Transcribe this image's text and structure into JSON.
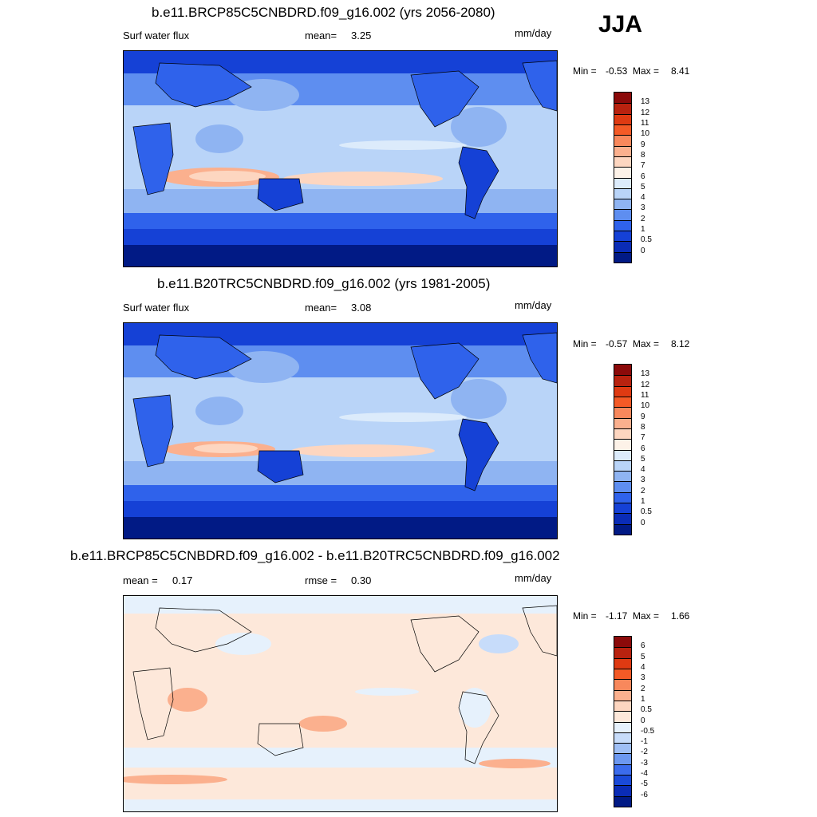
{
  "season": "JJA",
  "panels": [
    {
      "title": "b.e11.BRCP85C5CNBDRD.f09_g16.002 (yrs 2056-2080)",
      "left_label": "Surf water flux",
      "mid_label": "mean=",
      "mid_value": "3.25",
      "units": "mm/day",
      "min_label": "Min =",
      "min_value": "-0.53",
      "max_label": "Max =",
      "max_value": "8.41",
      "colorbar_labels": [
        "13",
        "12",
        "11",
        "10",
        "9",
        "8",
        "7",
        "6",
        "5",
        "4",
        "3",
        "2",
        "1",
        "0.5",
        "0"
      ]
    },
    {
      "title": "b.e11.B20TRC5CNBDRD.f09_g16.002 (yrs 1981-2005)",
      "left_label": "Surf water flux",
      "mid_label": "mean=",
      "mid_value": "3.08",
      "units": "mm/day",
      "min_label": "Min =",
      "min_value": "-0.57",
      "max_label": "Max =",
      "max_value": "8.12",
      "colorbar_labels": [
        "13",
        "12",
        "11",
        "10",
        "9",
        "8",
        "7",
        "6",
        "5",
        "4",
        "3",
        "2",
        "1",
        "0.5",
        "0"
      ]
    },
    {
      "title": "b.e11.BRCP85C5CNBDRD.f09_g16.002 - b.e11.B20TRC5CNBDRD.f09_g16.002",
      "left_label": "mean =",
      "left_value": "0.17",
      "mid_label": "rmse =",
      "mid_value": "0.30",
      "units": "mm/day",
      "min_label": "Min =",
      "min_value": "-1.17",
      "max_label": "Max =",
      "max_value": "1.66",
      "colorbar_labels": [
        "6",
        "5",
        "4",
        "3",
        "2",
        "1",
        "0.5",
        "0",
        "-0.5",
        "-1",
        "-2",
        "-3",
        "-4",
        "-5",
        "-6"
      ]
    }
  ],
  "colors": {
    "abs_scale": [
      "#8b0a0a",
      "#b8220f",
      "#df3a12",
      "#f45a26",
      "#f8885c",
      "#fbb08e",
      "#fdd6c0",
      "#fdf2e8",
      "#dcebfb",
      "#b9d4f8",
      "#8fb4f2",
      "#5e8ef0",
      "#2f62eb",
      "#1541d6",
      "#0a2cb6",
      "#011a85"
    ],
    "diff_scale": [
      "#8b0a0a",
      "#b8220f",
      "#df3a12",
      "#f45a26",
      "#f8885c",
      "#fbb08e",
      "#fdd6c0",
      "#fde8da",
      "#e6f1fc",
      "#c7dcfa",
      "#9fbff5",
      "#6c98f0",
      "#3b6ced",
      "#1a4ad9",
      "#0a2cb6",
      "#011a85"
    ]
  },
  "chart_data": [
    {
      "type": "heatmap",
      "title": "b.e11.BRCP85C5CNBDRD.f09_g16.002 (yrs 2056-2080)",
      "variable": "Surf water flux",
      "units": "mm/day",
      "mean": 3.25,
      "min": -0.53,
      "max": 8.41,
      "contour_levels": [
        0,
        0.5,
        1,
        2,
        3,
        4,
        5,
        6,
        7,
        8,
        9,
        10,
        11,
        12,
        13
      ],
      "projection": "global cylindrical equidistant, centered on Pacific"
    },
    {
      "type": "heatmap",
      "title": "b.e11.B20TRC5CNBDRD.f09_g16.002 (yrs 1981-2005)",
      "variable": "Surf water flux",
      "units": "mm/day",
      "mean": 3.08,
      "min": -0.57,
      "max": 8.12,
      "contour_levels": [
        0,
        0.5,
        1,
        2,
        3,
        4,
        5,
        6,
        7,
        8,
        9,
        10,
        11,
        12,
        13
      ],
      "projection": "global cylindrical equidistant, centered on Pacific"
    },
    {
      "type": "heatmap",
      "title": "b.e11.BRCP85C5CNBDRD.f09_g16.002 - b.e11.B20TRC5CNBDRD.f09_g16.002",
      "units": "mm/day",
      "mean": 0.17,
      "rmse": 0.3,
      "min": -1.17,
      "max": 1.66,
      "contour_levels": [
        -6,
        -5,
        -4,
        -3,
        -2,
        -1,
        -0.5,
        0,
        0.5,
        1,
        2,
        3,
        4,
        5,
        6
      ],
      "projection": "global cylindrical equidistant, centered on Pacific"
    }
  ]
}
